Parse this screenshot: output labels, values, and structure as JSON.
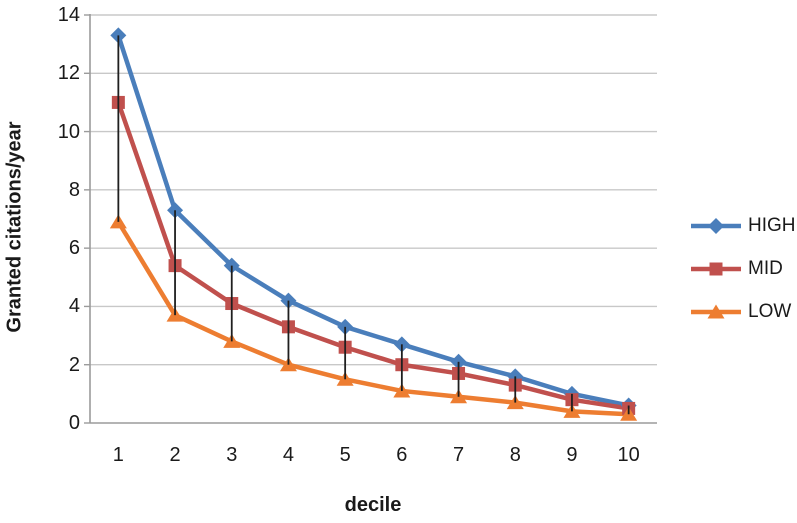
{
  "chart_data": {
    "type": "line",
    "title": "",
    "xlabel": "decile",
    "ylabel": "Granted citations/year",
    "categories": [
      "1",
      "2",
      "3",
      "4",
      "5",
      "6",
      "7",
      "8",
      "9",
      "10"
    ],
    "series": [
      {
        "name": "HIGH",
        "marker": "diamond",
        "color": "#4a7ebb",
        "values": [
          13.3,
          7.3,
          5.4,
          4.2,
          3.3,
          2.7,
          2.1,
          1.6,
          1.0,
          0.6
        ]
      },
      {
        "name": "MID",
        "marker": "square",
        "color": "#c0504d",
        "values": [
          11.0,
          5.4,
          4.1,
          3.3,
          2.6,
          2.0,
          1.7,
          1.3,
          0.8,
          0.5
        ]
      },
      {
        "name": "LOW",
        "marker": "triangle",
        "color": "#ed7d31",
        "values": [
          6.9,
          3.7,
          2.8,
          2.0,
          1.5,
          1.1,
          0.9,
          0.7,
          0.4,
          0.3
        ]
      }
    ],
    "yticks": [
      0,
      2,
      4,
      6,
      8,
      10,
      12,
      14
    ],
    "ylim": [
      0,
      14
    ],
    "grid": "horizontal",
    "high_low_lines": true,
    "legend_position": "right",
    "colors": {
      "gridline": "#c8c8c8",
      "axis": "#9b9b9b",
      "high_low_line": "#1f1f1f",
      "text": "#1a1a1a"
    }
  }
}
